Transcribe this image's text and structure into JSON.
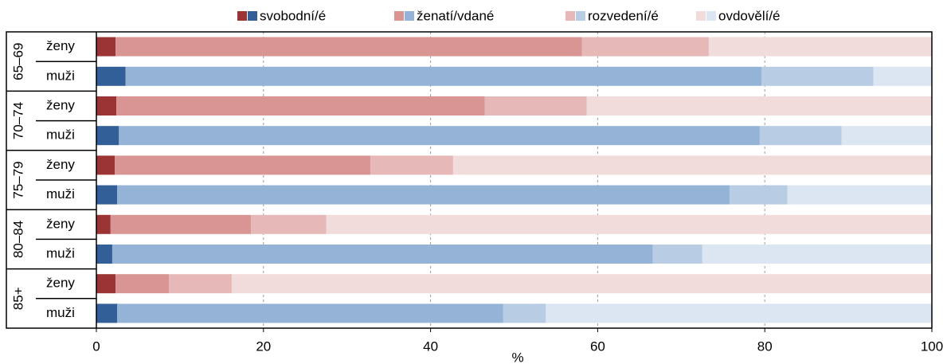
{
  "chart_data": {
    "type": "stacked-barh",
    "groups": [
      "65–69",
      "70–74",
      "75–79",
      "80–84",
      "85+"
    ],
    "categories": [
      "ženy",
      "muži",
      "ženy",
      "muži",
      "ženy",
      "muži",
      "ženy",
      "muži",
      "ženy",
      "muži"
    ],
    "series": [
      {
        "name": "svobodní/é",
        "colors": [
          "#9b3535",
          "#325f98"
        ],
        "values": [
          2.3,
          3.5,
          2.4,
          2.7,
          2.2,
          2.5,
          1.7,
          1.9,
          2.3,
          2.5
        ]
      },
      {
        "name": "ženatí/vdané",
        "colors": [
          "#d99594",
          "#95b3d7"
        ],
        "values": [
          55.8,
          76.1,
          44.1,
          76.7,
          30.6,
          73.3,
          16.8,
          64.7,
          6.4,
          46.2
        ]
      },
      {
        "name": "rozvedení/é",
        "colors": [
          "#e6b8b7",
          "#b8cce4"
        ],
        "values": [
          15.2,
          13.4,
          12.2,
          9.8,
          9.9,
          6.9,
          9.0,
          5.9,
          7.5,
          5.1
        ]
      },
      {
        "name": "ovdovělí/é",
        "colors": [
          "#f2dcdb",
          "#dce6f2"
        ],
        "values": [
          26.7,
          7.0,
          41.3,
          10.8,
          57.3,
          17.3,
          72.5,
          27.5,
          83.8,
          46.2
        ]
      }
    ],
    "xlabel": "%",
    "xlim": [
      0,
      100
    ],
    "xticks": [
      0,
      20,
      40,
      60,
      80,
      100
    ],
    "grid": true,
    "legend": "top"
  }
}
